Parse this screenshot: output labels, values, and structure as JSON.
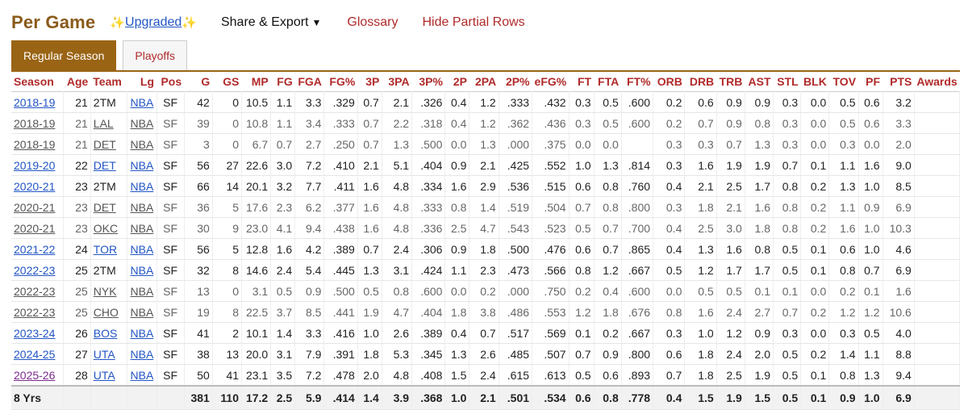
{
  "header": {
    "title": "Per Game",
    "upgraded_label": "Upgraded",
    "share_export_label": "Share & Export",
    "glossary_label": "Glossary",
    "hide_partial_label": "Hide Partial Rows"
  },
  "tabs": {
    "regular_season": "Regular Season",
    "playoffs": "Playoffs"
  },
  "columns": [
    "Season",
    "Age",
    "Team",
    "Lg",
    "Pos",
    "G",
    "GS",
    "MP",
    "FG",
    "FGA",
    "FG%",
    "3P",
    "3PA",
    "3P%",
    "2P",
    "2PA",
    "2P%",
    "eFG%",
    "FT",
    "FTA",
    "FT%",
    "ORB",
    "DRB",
    "TRB",
    "AST",
    "STL",
    "BLK",
    "TOV",
    "PF",
    "PTS",
    "Awards"
  ],
  "rows": [
    [
      "2018-19",
      "21",
      "2TM",
      "NBA",
      "SF",
      "42",
      "0",
      "10.5",
      "1.1",
      "3.3",
      ".329",
      "0.7",
      "2.1",
      ".326",
      "0.4",
      "1.2",
      ".333",
      ".432",
      "0.3",
      "0.5",
      ".600",
      "0.2",
      "0.6",
      "0.9",
      "0.9",
      "0.3",
      "0.0",
      "0.5",
      "0.6",
      "3.2",
      ""
    ],
    [
      "2018-19",
      "21",
      "LAL",
      "NBA",
      "SF",
      "39",
      "0",
      "10.8",
      "1.1",
      "3.4",
      ".333",
      "0.7",
      "2.2",
      ".318",
      "0.4",
      "1.2",
      ".362",
      ".436",
      "0.3",
      "0.5",
      ".600",
      "0.2",
      "0.7",
      "0.9",
      "0.8",
      "0.3",
      "0.0",
      "0.5",
      "0.6",
      "3.3",
      ""
    ],
    [
      "2018-19",
      "21",
      "DET",
      "NBA",
      "SF",
      "3",
      "0",
      "6.7",
      "0.7",
      "2.7",
      ".250",
      "0.7",
      "1.3",
      ".500",
      "0.0",
      "1.3",
      ".000",
      ".375",
      "0.0",
      "0.0",
      "",
      "0.3",
      "0.3",
      "0.7",
      "1.3",
      "0.3",
      "0.0",
      "0.3",
      "0.0",
      "2.0",
      ""
    ],
    [
      "2019-20",
      "22",
      "DET",
      "NBA",
      "SF",
      "56",
      "27",
      "22.6",
      "3.0",
      "7.2",
      ".410",
      "2.1",
      "5.1",
      ".404",
      "0.9",
      "2.1",
      ".425",
      ".552",
      "1.0",
      "1.3",
      ".814",
      "0.3",
      "1.6",
      "1.9",
      "1.9",
      "0.7",
      "0.1",
      "1.1",
      "1.6",
      "9.0",
      ""
    ],
    [
      "2020-21",
      "23",
      "2TM",
      "NBA",
      "SF",
      "66",
      "14",
      "20.1",
      "3.2",
      "7.7",
      ".411",
      "1.6",
      "4.8",
      ".334",
      "1.6",
      "2.9",
      ".536",
      ".515",
      "0.6",
      "0.8",
      ".760",
      "0.4",
      "2.1",
      "2.5",
      "1.7",
      "0.8",
      "0.2",
      "1.3",
      "1.0",
      "8.5",
      ""
    ],
    [
      "2020-21",
      "23",
      "DET",
      "NBA",
      "SF",
      "36",
      "5",
      "17.6",
      "2.3",
      "6.2",
      ".377",
      "1.6",
      "4.8",
      ".333",
      "0.8",
      "1.4",
      ".519",
      ".504",
      "0.7",
      "0.8",
      ".800",
      "0.3",
      "1.8",
      "2.1",
      "1.6",
      "0.8",
      "0.2",
      "1.1",
      "0.9",
      "6.9",
      ""
    ],
    [
      "2020-21",
      "23",
      "OKC",
      "NBA",
      "SF",
      "30",
      "9",
      "23.0",
      "4.1",
      "9.4",
      ".438",
      "1.6",
      "4.8",
      ".336",
      "2.5",
      "4.7",
      ".543",
      ".523",
      "0.5",
      "0.7",
      ".700",
      "0.4",
      "2.5",
      "3.0",
      "1.8",
      "0.8",
      "0.2",
      "1.6",
      "1.0",
      "10.3",
      ""
    ],
    [
      "2021-22",
      "24",
      "TOR",
      "NBA",
      "SF",
      "56",
      "5",
      "12.8",
      "1.6",
      "4.2",
      ".389",
      "0.7",
      "2.4",
      ".306",
      "0.9",
      "1.8",
      ".500",
      ".476",
      "0.6",
      "0.7",
      ".865",
      "0.4",
      "1.3",
      "1.6",
      "0.8",
      "0.5",
      "0.1",
      "0.6",
      "1.0",
      "4.6",
      ""
    ],
    [
      "2022-23",
      "25",
      "2TM",
      "NBA",
      "SF",
      "32",
      "8",
      "14.6",
      "2.4",
      "5.4",
      ".445",
      "1.3",
      "3.1",
      ".424",
      "1.1",
      "2.3",
      ".473",
      ".566",
      "0.8",
      "1.2",
      ".667",
      "0.5",
      "1.2",
      "1.7",
      "1.7",
      "0.5",
      "0.1",
      "0.8",
      "0.7",
      "6.9",
      ""
    ],
    [
      "2022-23",
      "25",
      "NYK",
      "NBA",
      "SF",
      "13",
      "0",
      "3.1",
      "0.5",
      "0.9",
      ".500",
      "0.5",
      "0.8",
      ".600",
      "0.0",
      "0.2",
      ".000",
      ".750",
      "0.2",
      "0.4",
      ".600",
      "0.0",
      "0.5",
      "0.5",
      "0.1",
      "0.1",
      "0.0",
      "0.2",
      "0.1",
      "1.6",
      ""
    ],
    [
      "2022-23",
      "25",
      "CHO",
      "NBA",
      "SF",
      "19",
      "8",
      "22.5",
      "3.7",
      "8.5",
      ".441",
      "1.9",
      "4.7",
      ".404",
      "1.8",
      "3.8",
      ".486",
      ".553",
      "1.2",
      "1.8",
      ".676",
      "0.8",
      "1.6",
      "2.4",
      "2.7",
      "0.7",
      "0.2",
      "1.2",
      "1.2",
      "10.6",
      ""
    ],
    [
      "2023-24",
      "26",
      "BOS",
      "NBA",
      "SF",
      "41",
      "2",
      "10.1",
      "1.4",
      "3.3",
      ".416",
      "1.0",
      "2.6",
      ".389",
      "0.4",
      "0.7",
      ".517",
      ".569",
      "0.1",
      "0.2",
      ".667",
      "0.3",
      "1.0",
      "1.2",
      "0.9",
      "0.3",
      "0.0",
      "0.3",
      "0.5",
      "4.0",
      ""
    ],
    [
      "2024-25",
      "27",
      "UTA",
      "NBA",
      "SF",
      "38",
      "13",
      "20.0",
      "3.1",
      "7.9",
      ".391",
      "1.8",
      "5.3",
      ".345",
      "1.3",
      "2.6",
      ".485",
      ".507",
      "0.7",
      "0.9",
      ".800",
      "0.6",
      "1.8",
      "2.4",
      "2.0",
      "0.5",
      "0.2",
      "1.4",
      "1.1",
      "8.8",
      ""
    ],
    [
      "2025-26",
      "28",
      "UTA",
      "NBA",
      "SF",
      "50",
      "41",
      "23.1",
      "3.5",
      "7.2",
      ".478",
      "2.0",
      "4.8",
      ".408",
      "1.5",
      "2.4",
      ".615",
      ".613",
      "0.5",
      "0.6",
      ".893",
      "0.7",
      "1.8",
      "2.5",
      "1.9",
      "0.5",
      "0.1",
      "0.8",
      "1.3",
      "9.4",
      ""
    ]
  ],
  "dim_rows": [
    1,
    2,
    5,
    6,
    9,
    10
  ],
  "footer": [
    "8 Yrs",
    "",
    "",
    "",
    "",
    "381",
    "110",
    "17.2",
    "2.5",
    "5.9",
    ".414",
    "1.4",
    "3.9",
    ".368",
    "1.0",
    "2.1",
    ".501",
    ".534",
    "0.6",
    "0.8",
    ".778",
    "0.4",
    "1.5",
    "1.9",
    "1.5",
    "0.5",
    "0.1",
    "0.9",
    "1.0",
    "6.9",
    ""
  ],
  "colors": {
    "brand": "#9a6415",
    "header_text": "#b12a2a",
    "link": "#2255c4"
  }
}
